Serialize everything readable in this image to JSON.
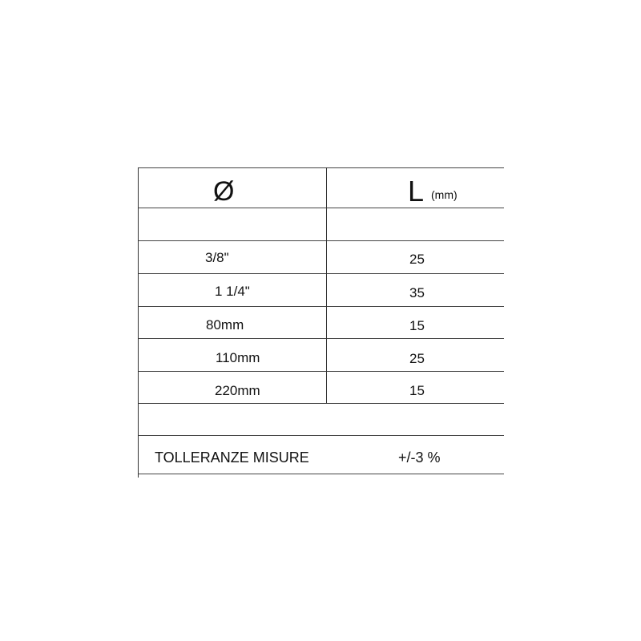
{
  "table": {
    "header": {
      "diameter_symbol": "Ø",
      "length_label": "L",
      "length_unit": "(mm)"
    },
    "rows": [
      {
        "diameter": "3/8\"",
        "length": "25"
      },
      {
        "diameter": "1 1/4\"",
        "length": "35"
      },
      {
        "diameter": "80mm",
        "length": "15"
      },
      {
        "diameter": "110mm",
        "length": "25"
      },
      {
        "diameter": "220mm",
        "length": "15"
      }
    ],
    "tolerance": {
      "label": "TOLLERANZE MISURE",
      "value": "+/-3 %"
    }
  }
}
